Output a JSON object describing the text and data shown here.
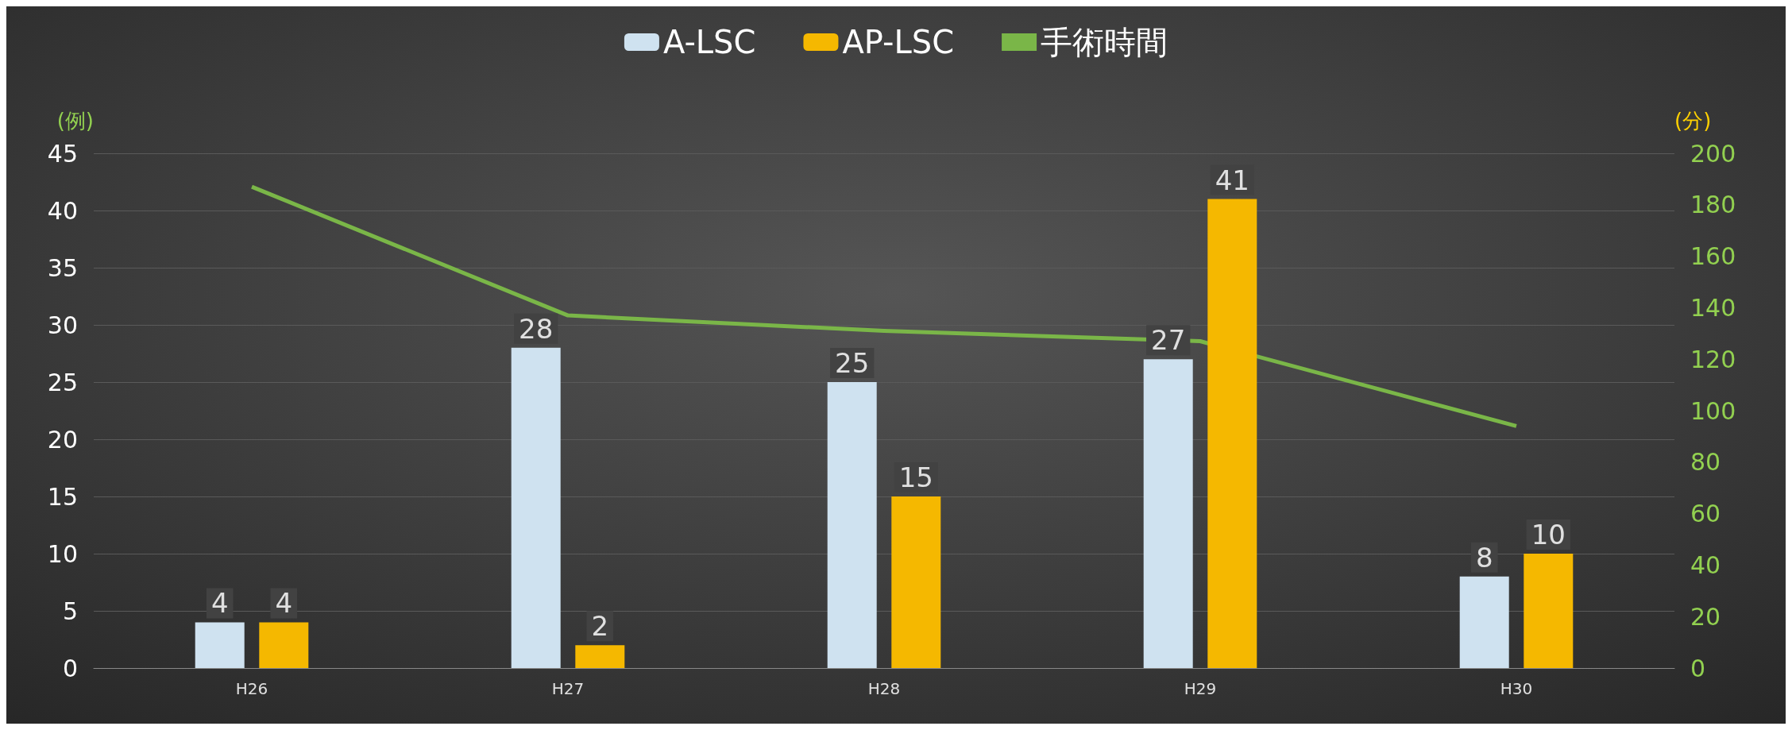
{
  "chart_data": {
    "type": "bar",
    "categories": [
      "H26",
      "H27",
      "H28",
      "H29",
      "H30"
    ],
    "ylabel": "(例)",
    "y2label": "(分)",
    "series": [
      {
        "name": "A-LSC",
        "color": "#cfe2f0",
        "values": [
          4,
          28,
          25,
          27,
          8
        ],
        "value_labels": [
          "4",
          "28",
          "25",
          "27",
          "8"
        ]
      },
      {
        "name": "AP-LSC",
        "color": "#f5b800",
        "values": [
          4,
          2,
          15,
          41,
          10
        ],
        "value_labels": [
          "4",
          "2",
          "15",
          "41",
          "10"
        ]
      },
      {
        "name": "手術時間",
        "type": "line",
        "axis": "y2",
        "color": "#7ab648",
        "values": [
          187,
          137,
          131,
          127,
          94
        ],
        "marker": "none",
        "line_style": "solid"
      }
    ],
    "ylim": [
      0,
      45
    ],
    "yticks": [
      0,
      5,
      10,
      15,
      20,
      25,
      30,
      35,
      40,
      45
    ],
    "y2lim": [
      0,
      200
    ],
    "y2ticks": [
      0,
      20,
      40,
      60,
      80,
      100,
      120,
      140,
      160,
      180,
      200
    ],
    "grid": "y",
    "legend": "top"
  }
}
